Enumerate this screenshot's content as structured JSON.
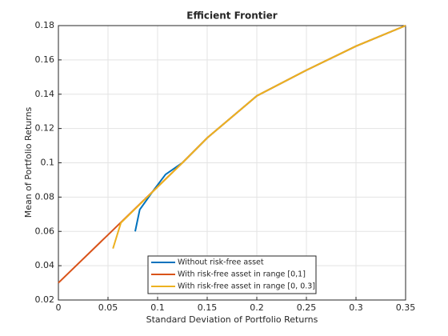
{
  "chart_data": {
    "type": "line",
    "title": "Efficient Frontier",
    "x_label": "Standard Deviation of Portfolio Returns",
    "y_label": "Mean of Portfolio Returns",
    "xlim": [
      0,
      0.35
    ],
    "xticks": [
      0,
      0.05,
      0.1,
      0.15,
      0.2,
      0.25,
      0.3,
      0.35
    ],
    "ylim": [
      0.02,
      0.18
    ],
    "yticks": [
      0.02,
      0.04,
      0.06,
      0.08,
      0.1,
      0.12,
      0.14,
      0.16,
      0.18
    ],
    "grid": true,
    "legend": "south",
    "series": [
      {
        "name": "Without risk-free asset",
        "color": "#0072bd",
        "x": [
          0.0774,
          0.082,
          0.097,
          0.108,
          0.125,
          0.15,
          0.2,
          0.25,
          0.3,
          0.35
        ],
        "values": [
          0.06,
          0.0727,
          0.0848,
          0.0932,
          0.1,
          0.1145,
          0.139,
          0.154,
          0.168,
          0.18
        ]
      },
      {
        "name": "With risk-free asset in range [0,1]",
        "color": "#d95319",
        "x": [
          0,
          0.05,
          0.125,
          0.15,
          0.2,
          0.25,
          0.3,
          0.35
        ],
        "values": [
          0.03,
          0.058,
          0.1,
          0.1145,
          0.139,
          0.154,
          0.168,
          0.18
        ]
      },
      {
        "name": "With risk-free asset in range [0, 0.3]",
        "color": "#edb120",
        "x": [
          0.055,
          0.063,
          0.125,
          0.15,
          0.2,
          0.25,
          0.3,
          0.35
        ],
        "values": [
          0.05,
          0.065,
          0.1,
          0.1145,
          0.139,
          0.154,
          0.168,
          0.18
        ]
      }
    ]
  }
}
